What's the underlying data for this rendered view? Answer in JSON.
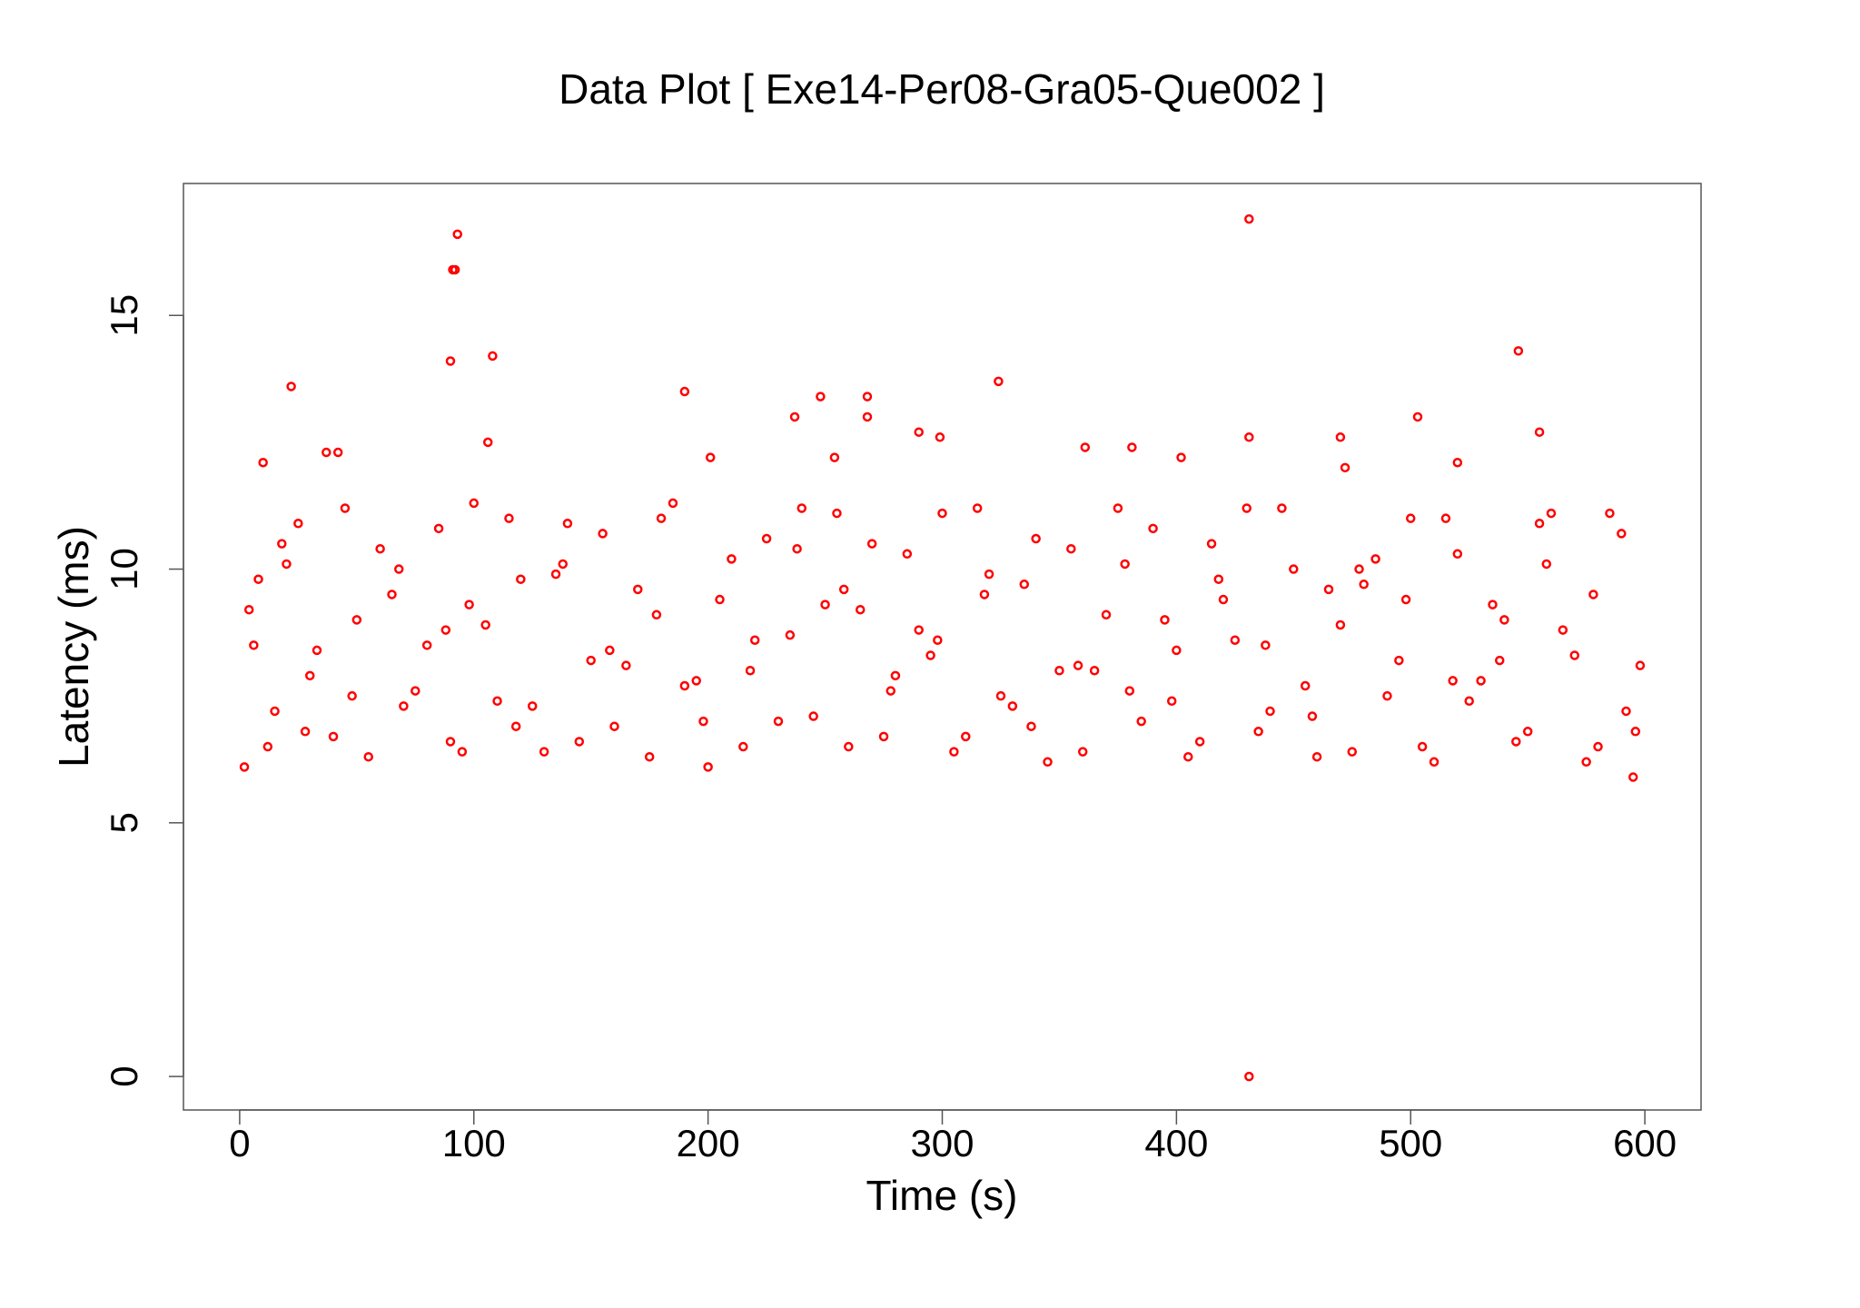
{
  "chart_data": {
    "type": "scatter",
    "title": "Data Plot [ Exe14-Per08-Gra05-Que002 ]",
    "x_label": "Time (s)",
    "y_label": "Latency (ms)",
    "color": "#ff0000",
    "xlim": [
      -24,
      624
    ],
    "ylim": [
      -0.66,
      17.6
    ],
    "xticks": [
      0,
      100,
      200,
      300,
      400,
      500,
      600
    ],
    "yticks": [
      0,
      5,
      10,
      15
    ],
    "x": [
      93,
      91,
      92,
      90,
      108,
      22,
      324,
      431,
      431,
      546,
      190,
      248,
      268,
      237,
      268,
      503,
      555,
      290,
      299,
      431,
      470,
      106,
      381,
      361,
      37,
      42,
      402,
      254,
      520,
      10,
      472,
      201,
      2,
      8,
      15,
      25,
      33,
      45,
      55,
      65,
      75,
      85,
      95,
      105,
      115,
      125,
      135,
      145,
      155,
      165,
      175,
      185,
      195,
      205,
      215,
      225,
      235,
      245,
      255,
      265,
      275,
      285,
      295,
      305,
      315,
      325,
      335,
      345,
      355,
      365,
      375,
      385,
      395,
      405,
      415,
      425,
      435,
      445,
      455,
      465,
      475,
      485,
      495,
      505,
      515,
      525,
      535,
      545,
      555,
      565,
      575,
      585,
      595,
      4,
      12,
      20,
      30,
      40,
      50,
      60,
      70,
      80,
      90,
      100,
      110,
      120,
      130,
      140,
      150,
      160,
      170,
      180,
      190,
      200,
      210,
      220,
      230,
      240,
      250,
      260,
      270,
      280,
      290,
      300,
      310,
      320,
      330,
      340,
      350,
      360,
      370,
      380,
      390,
      400,
      410,
      420,
      430,
      440,
      450,
      460,
      470,
      480,
      490,
      500,
      510,
      520,
      530,
      540,
      550,
      560,
      570,
      580,
      590,
      598,
      6,
      18,
      28,
      48,
      68,
      88,
      98,
      118,
      138,
      158,
      178,
      198,
      218,
      238,
      258,
      278,
      298,
      318,
      338,
      358,
      378,
      398,
      418,
      438,
      458,
      478,
      498,
      518,
      538,
      558,
      578,
      592,
      596
    ],
    "values": [
      16.6,
      15.9,
      15.9,
      14.1,
      14.2,
      13.6,
      13.7,
      16.9,
      0,
      14.3,
      13.5,
      13.4,
      13.4,
      13.0,
      13.0,
      13.0,
      12.7,
      12.7,
      12.6,
      12.6,
      12.6,
      12.5,
      12.4,
      12.4,
      12.3,
      12.3,
      12.2,
      12.2,
      12.1,
      12.1,
      12.0,
      12.2,
      6.1,
      9.8,
      7.2,
      10.9,
      8.4,
      11.2,
      6.3,
      9.5,
      7.6,
      10.8,
      6.4,
      8.9,
      11.0,
      7.3,
      9.9,
      6.6,
      10.7,
      8.1,
      6.3,
      11.3,
      7.8,
      9.4,
      6.5,
      10.6,
      8.7,
      7.1,
      11.1,
      9.2,
      6.7,
      10.3,
      8.3,
      6.4,
      11.2,
      7.5,
      9.7,
      6.2,
      10.4,
      8.0,
      11.2,
      7.0,
      9.0,
      6.3,
      10.5,
      8.6,
      6.8,
      11.2,
      7.7,
      9.6,
      6.4,
      10.2,
      8.2,
      6.5,
      11.0,
      7.4,
      9.3,
      6.6,
      10.9,
      8.8,
      6.2,
      11.1,
      5.9,
      9.2,
      6.5,
      10.1,
      7.9,
      6.7,
      9.0,
      10.4,
      7.3,
      8.5,
      6.6,
      11.3,
      7.4,
      9.8,
      6.4,
      10.9,
      8.2,
      6.9,
      9.6,
      11.0,
      7.7,
      6.1,
      10.2,
      8.6,
      7.0,
      11.2,
      9.3,
      6.5,
      10.5,
      7.9,
      8.8,
      11.1,
      6.7,
      9.9,
      7.3,
      10.6,
      8.0,
      6.4,
      9.1,
      7.6,
      10.8,
      8.4,
      6.6,
      9.4,
      11.2,
      7.2,
      10.0,
      6.3,
      8.9,
      9.7,
      7.5,
      11.0,
      6.2,
      10.3,
      7.8,
      9.0,
      6.8,
      11.1,
      8.3,
      6.5,
      10.7,
      8.1,
      8.5,
      10.5,
      6.8,
      7.5,
      10.0,
      8.8,
      9.3,
      6.9,
      10.1,
      8.4,
      9.1,
      7.0,
      8.0,
      10.4,
      9.6,
      7.6,
      8.6,
      9.5,
      6.9,
      8.1,
      10.1,
      7.4,
      9.8,
      8.5,
      7.1,
      10.0,
      9.4,
      7.8,
      8.2,
      10.1,
      9.5,
      7.2,
      6.8
    ]
  }
}
